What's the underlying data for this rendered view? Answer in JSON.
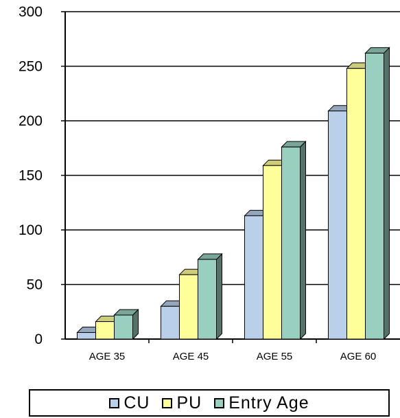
{
  "chart_data": {
    "type": "bar",
    "categories": [
      "AGE 35",
      "AGE 45",
      "AGE 55",
      "AGE 60"
    ],
    "series": [
      {
        "name": "CU",
        "values": [
          6,
          30,
          113,
          209
        ],
        "color": "#b9cfea"
      },
      {
        "name": "PU",
        "values": [
          16,
          59,
          159,
          248
        ],
        "color": "#ffff99"
      },
      {
        "name": "Entry Age",
        "values": [
          22,
          73,
          176,
          262
        ],
        "color": "#99cfbf"
      }
    ],
    "yticks": [
      0,
      50,
      100,
      150,
      200,
      250,
      300
    ],
    "ylim": [
      0,
      300
    ],
    "grid": true,
    "legend": "bottom"
  }
}
